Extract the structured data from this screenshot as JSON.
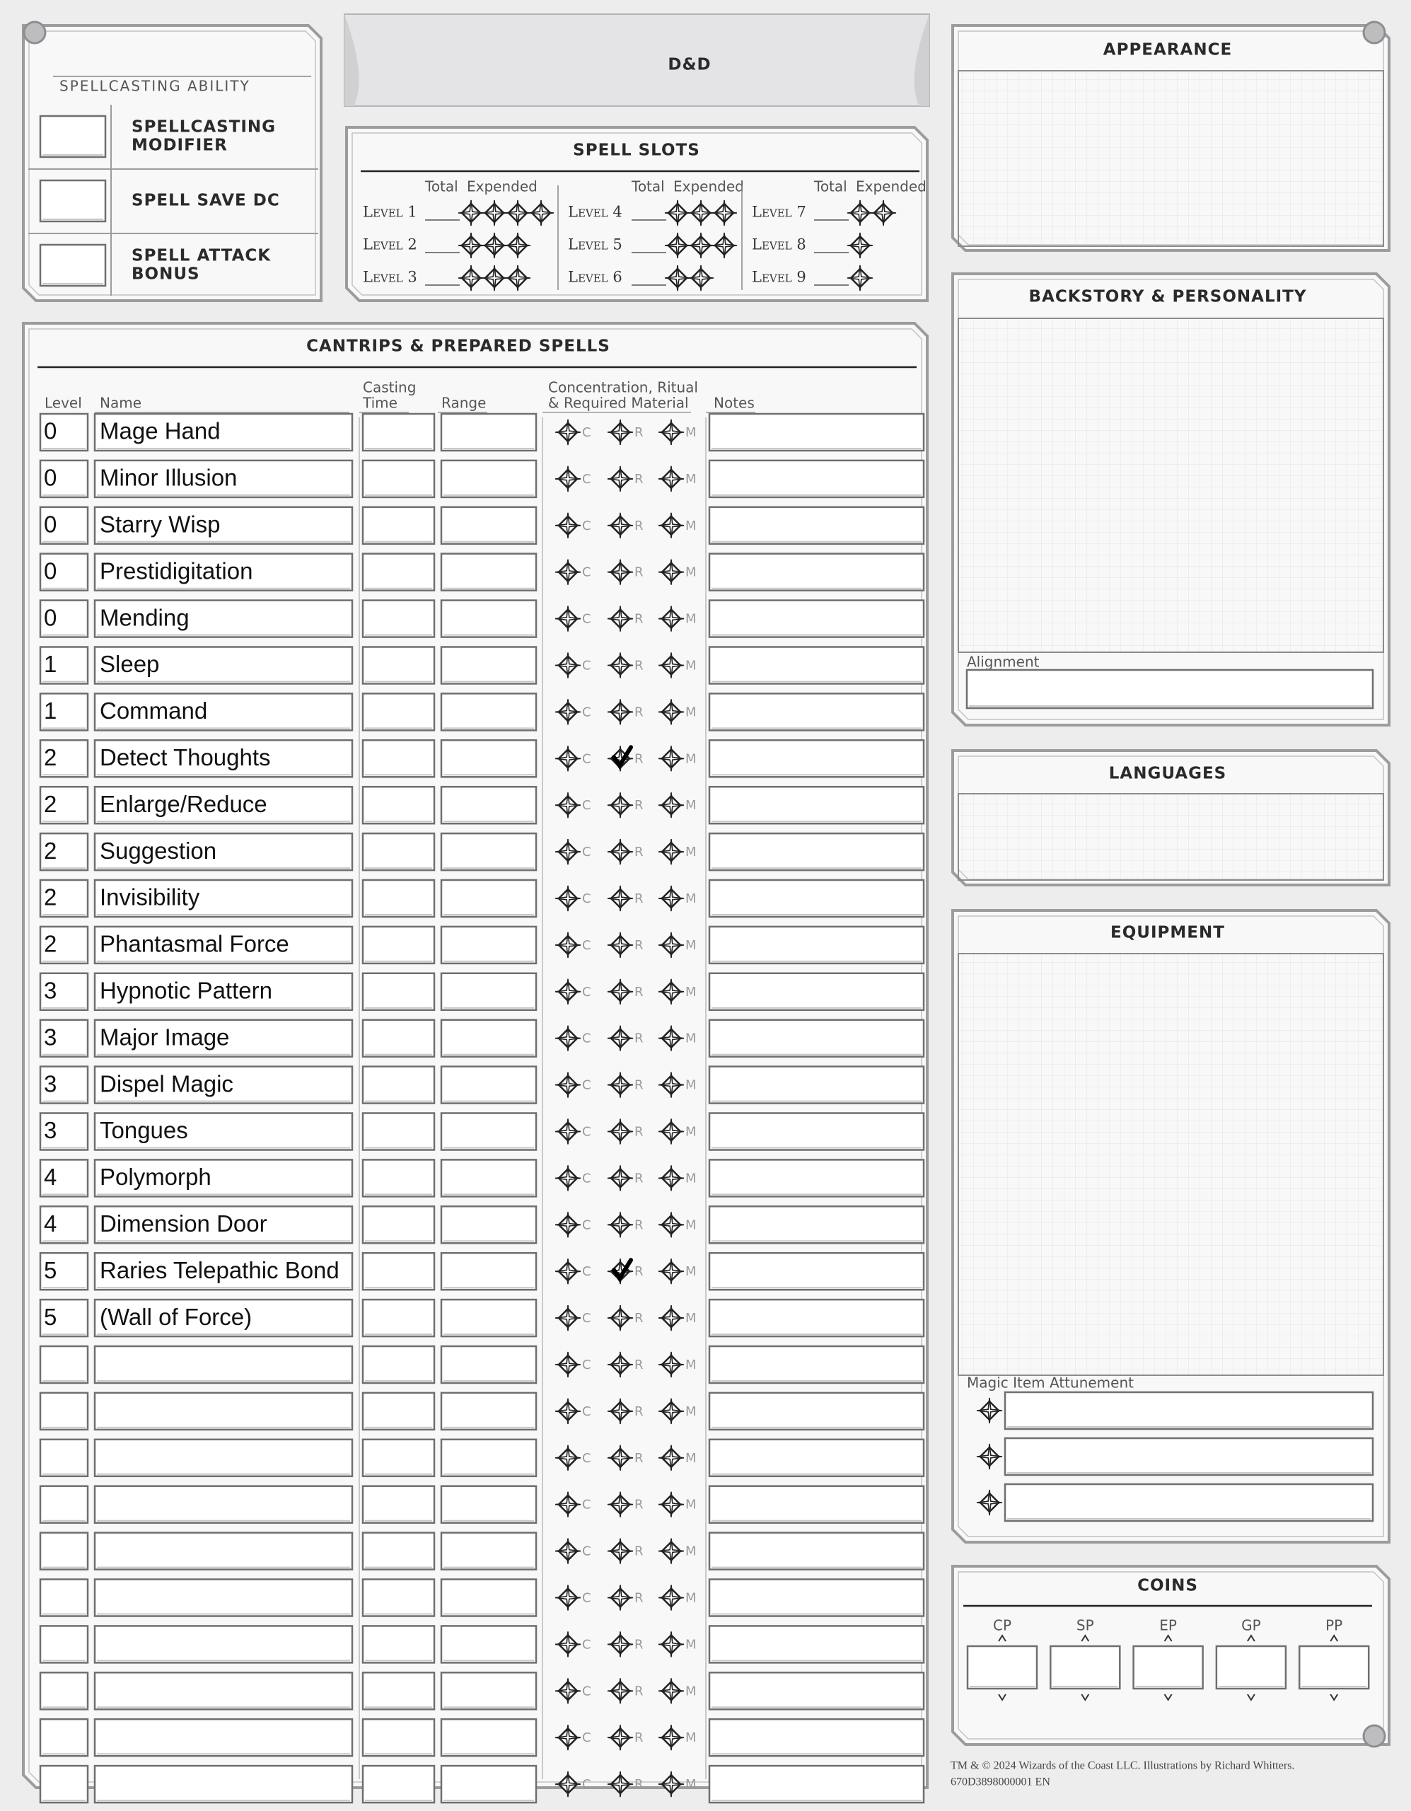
{
  "logo": "D&D",
  "spellcasting": {
    "ability_label": "SPELLCASTING ABILITY",
    "fields": [
      [
        "SPELLCASTING",
        "MODIFIER"
      ],
      [
        "SPELL SAVE DC"
      ],
      [
        "SPELL ATTACK",
        "BONUS"
      ]
    ]
  },
  "spell_slots": {
    "title": "SPELL SLOTS",
    "total_label": "Total",
    "expended_label": "Expended",
    "levels": [
      {
        "label": "Level 1",
        "slots": 4
      },
      {
        "label": "Level 2",
        "slots": 3
      },
      {
        "label": "Level 3",
        "slots": 3
      },
      {
        "label": "Level 4",
        "slots": 3
      },
      {
        "label": "Level 5",
        "slots": 3
      },
      {
        "label": "Level 6",
        "slots": 2
      },
      {
        "label": "Level 7",
        "slots": 2
      },
      {
        "label": "Level 8",
        "slots": 1
      },
      {
        "label": "Level 9",
        "slots": 1
      }
    ]
  },
  "spells": {
    "title": "CANTRIPS & PREPARED SPELLS",
    "columns": {
      "level": "Level",
      "name": "Name",
      "casting_time": [
        "Casting",
        "Time"
      ],
      "range": "Range",
      "crm": [
        "Concentration, Ritual",
        "& Required Material"
      ],
      "notes": "Notes"
    },
    "flags": [
      "C",
      "R",
      "M"
    ],
    "rows": [
      {
        "level": 0,
        "name": "Mage Hand"
      },
      {
        "level": 0,
        "name": "Minor Illusion"
      },
      {
        "level": 0,
        "name": "Starry Wisp"
      },
      {
        "level": 0,
        "name": "Prestidigitation"
      },
      {
        "level": 0,
        "name": "Mending"
      },
      {
        "level": 1,
        "name": "Sleep"
      },
      {
        "level": 1,
        "name": "Command"
      },
      {
        "level": 2,
        "name": "Detect Thoughts",
        "ritual": true
      },
      {
        "level": 2,
        "name": "Enlarge/Reduce"
      },
      {
        "level": 2,
        "name": "Suggestion"
      },
      {
        "level": 2,
        "name": "Invisibility"
      },
      {
        "level": 2,
        "name": "Phantasmal Force"
      },
      {
        "level": 3,
        "name": "Hypnotic Pattern"
      },
      {
        "level": 3,
        "name": "Major Image"
      },
      {
        "level": 3,
        "name": "Dispel Magic"
      },
      {
        "level": 3,
        "name": "Tongues"
      },
      {
        "level": 4,
        "name": "Polymorph"
      },
      {
        "level": 4,
        "name": "Dimension Door"
      },
      {
        "level": 5,
        "name": "Raries Telepathic Bond",
        "ritual": true
      },
      {
        "level": 5,
        "name": "(Wall of Force)"
      },
      null,
      null,
      null,
      null,
      null,
      null,
      null,
      null,
      null,
      null
    ]
  },
  "appearance": {
    "title": "APPEARANCE"
  },
  "backstory": {
    "title": "BACKSTORY & PERSONALITY",
    "alignment_label": "Alignment"
  },
  "languages": {
    "title": "LANGUAGES"
  },
  "equipment": {
    "title": "EQUIPMENT",
    "attunement_label": "Magic Item Attunement"
  },
  "coins": {
    "title": "COINS",
    "labels": [
      "CP",
      "SP",
      "EP",
      "GP",
      "PP"
    ]
  },
  "footer": [
    "TM & © 2024 Wizards of the Coast LLC. Illustrations by Richard Whitters.",
    "670D3898000001 EN"
  ]
}
